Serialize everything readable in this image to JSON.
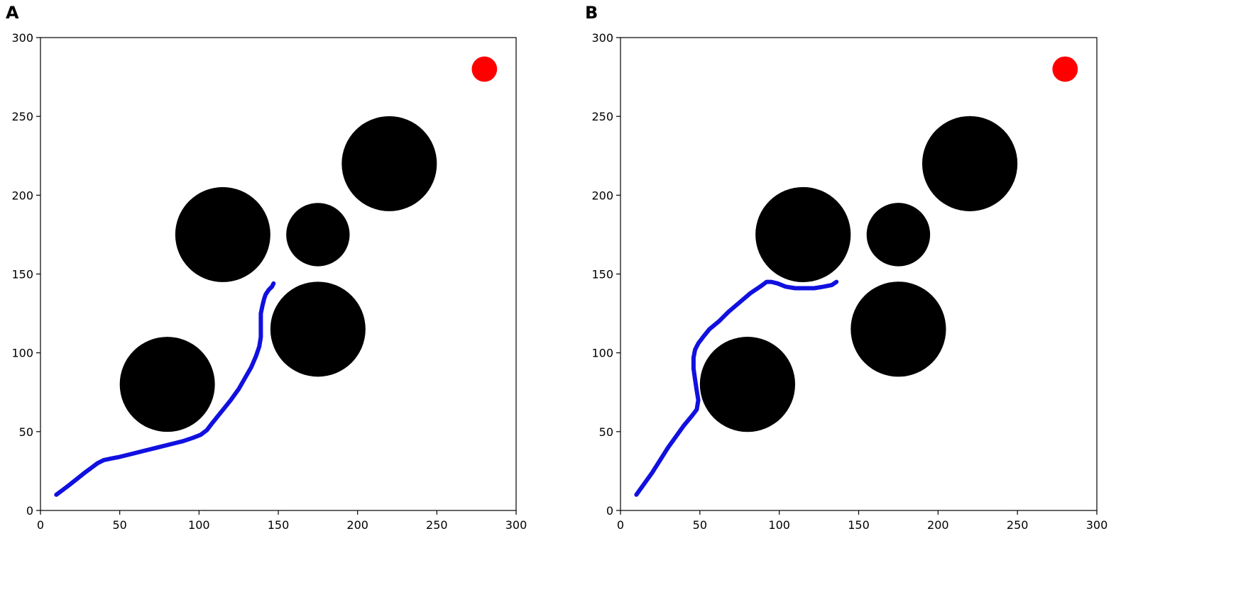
{
  "chart_data": [
    {
      "type": "scatter",
      "panel_label": "A",
      "xlim": [
        0,
        300
      ],
      "ylim": [
        0,
        300
      ],
      "xticks": [
        0,
        50,
        100,
        150,
        200,
        250,
        300
      ],
      "yticks": [
        0,
        50,
        100,
        150,
        200,
        250,
        300
      ],
      "grid": false,
      "obstacles": [
        {
          "x": 80,
          "y": 80,
          "r": 30
        },
        {
          "x": 115,
          "y": 175,
          "r": 30
        },
        {
          "x": 175,
          "y": 175,
          "r": 20
        },
        {
          "x": 175,
          "y": 115,
          "r": 30
        },
        {
          "x": 220,
          "y": 220,
          "r": 30
        }
      ],
      "goal": {
        "x": 280,
        "y": 280,
        "r": 8
      },
      "path": {
        "x": [
          10,
          14,
          18,
          23,
          28,
          32,
          36,
          40,
          45,
          50,
          58,
          66,
          74,
          82,
          90,
          96,
          101,
          105,
          108,
          112,
          116,
          120,
          125,
          129,
          133,
          136,
          138,
          139,
          139,
          139,
          140,
          141,
          142,
          144,
          146,
          147
        ],
        "y": [
          10,
          13,
          16,
          20,
          24,
          27,
          30,
          32,
          33,
          34,
          36,
          38,
          40,
          42,
          44,
          46,
          48,
          51,
          55,
          60,
          65,
          70,
          77,
          84,
          91,
          98,
          104,
          110,
          118,
          125,
          130,
          134,
          137,
          140,
          142,
          144
        ]
      },
      "colors": {
        "obstacle": "#000000",
        "goal": "#ff0000",
        "path": "#1010e0"
      }
    },
    {
      "type": "scatter",
      "panel_label": "B",
      "xlim": [
        0,
        300
      ],
      "ylim": [
        0,
        300
      ],
      "xticks": [
        0,
        50,
        100,
        150,
        200,
        250,
        300
      ],
      "yticks": [
        0,
        50,
        100,
        150,
        200,
        250,
        300
      ],
      "grid": false,
      "obstacles": [
        {
          "x": 80,
          "y": 80,
          "r": 30
        },
        {
          "x": 115,
          "y": 175,
          "r": 30
        },
        {
          "x": 175,
          "y": 175,
          "r": 20
        },
        {
          "x": 175,
          "y": 115,
          "r": 30
        },
        {
          "x": 220,
          "y": 220,
          "r": 30
        }
      ],
      "goal": {
        "x": 280,
        "y": 280,
        "r": 8
      },
      "path": {
        "x": [
          10,
          15,
          20,
          25,
          30,
          35,
          40,
          45,
          48,
          49,
          48,
          47,
          46,
          46,
          47,
          49,
          52,
          56,
          62,
          68,
          75,
          82,
          88,
          92,
          95,
          99,
          104,
          110,
          116,
          122,
          128,
          133,
          136
        ],
        "y": [
          10,
          17,
          24,
          32,
          40,
          47,
          54,
          60,
          64,
          70,
          76,
          83,
          90,
          97,
          102,
          106,
          110,
          115,
          120,
          126,
          132,
          138,
          142,
          145,
          145,
          144,
          142,
          141,
          141,
          141,
          142,
          143,
          145
        ]
      },
      "colors": {
        "obstacle": "#000000",
        "goal": "#ff0000",
        "path": "#1010e0"
      }
    }
  ]
}
